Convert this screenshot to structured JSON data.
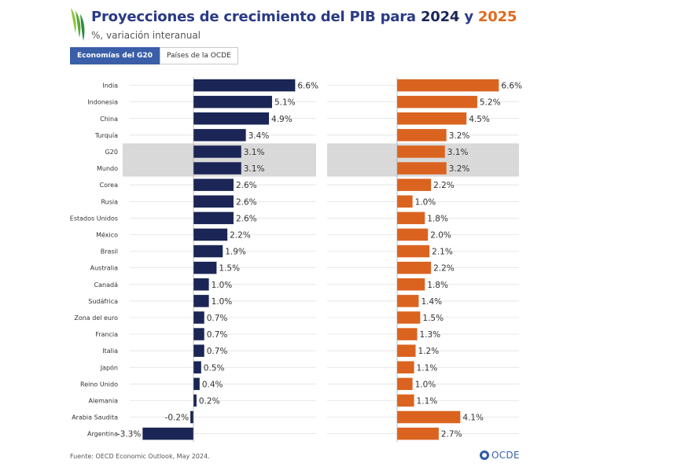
{
  "header": {
    "title_prefix": "Proyecciones de crecimiento del PIB para ",
    "year_a": "2024",
    "title_join": " y ",
    "year_b": "2025",
    "subtitle": "%, variación interanual"
  },
  "tabs": [
    {
      "label": "Economías del G20",
      "active": true
    },
    {
      "label": "Países de la OCDE",
      "active": false
    }
  ],
  "colors": {
    "y2024": "#1b2656",
    "y2025": "#db6320",
    "highlight": "#d9d9d9",
    "grid": "#dedede"
  },
  "chart_data": [
    {
      "type": "bar",
      "orientation": "horizontal",
      "series_name": "2024",
      "unit": "%",
      "categories": [
        "India",
        "Indonesia",
        "China",
        "Turquía",
        "G20",
        "Mundo",
        "Corea",
        "Rusia",
        "Estados Unidos",
        "México",
        "Brasil",
        "Australia",
        "Canadá",
        "Sudáfrica",
        "Zona del euro",
        "Francia",
        "Italia",
        "Japón",
        "Reino Unido",
        "Alemania",
        "Arabia Saudita",
        "Argentina"
      ],
      "values": [
        6.6,
        5.1,
        4.9,
        3.4,
        3.1,
        3.1,
        2.6,
        2.6,
        2.6,
        2.2,
        1.9,
        1.5,
        1.0,
        1.0,
        0.7,
        0.7,
        0.7,
        0.5,
        0.4,
        0.2,
        -0.2,
        -3.3
      ],
      "labels": [
        "6.6%",
        "5.1%",
        "4.9%",
        "3.4%",
        "3.1%",
        "3.1%",
        "2.6%",
        "2.6%",
        "2.6%",
        "2.2%",
        "1.9%",
        "1.5%",
        "1.0%",
        "1.0%",
        "0.7%",
        "0.7%",
        "0.7%",
        "0.5%",
        "0.4%",
        "0.2%",
        "-0.2%",
        "-3.3%"
      ],
      "highlighted": [
        "G20",
        "Mundo"
      ]
    },
    {
      "type": "bar",
      "orientation": "horizontal",
      "series_name": "2025",
      "unit": "%",
      "categories": [
        "India",
        "Indonesia",
        "China",
        "Turquía",
        "G20",
        "Mundo",
        "Corea",
        "Rusia",
        "Estados Unidos",
        "México",
        "Brasil",
        "Australia",
        "Canadá",
        "Sudáfrica",
        "Zona del euro",
        "Francia",
        "Italia",
        "Japón",
        "Reino Unido",
        "Alemania",
        "Arabia Saudita",
        "Argentina"
      ],
      "values": [
        6.6,
        5.2,
        4.5,
        3.2,
        3.1,
        3.2,
        2.2,
        1.0,
        1.8,
        2.0,
        2.1,
        2.2,
        1.8,
        1.4,
        1.5,
        1.3,
        1.2,
        1.1,
        1.0,
        1.1,
        4.1,
        2.7
      ],
      "labels": [
        "6.6%",
        "5.2%",
        "4.5%",
        "3.2%",
        "3.1%",
        "3.2%",
        "2.2%",
        "1.0%",
        "1.8%",
        "2.0%",
        "2.1%",
        "2.2%",
        "1.8%",
        "1.4%",
        "1.5%",
        "1.3%",
        "1.2%",
        "1.1%",
        "1.0%",
        "1.1%",
        "4.1%",
        "2.7%"
      ],
      "highlighted": [
        "G20",
        "Mundo"
      ]
    }
  ],
  "footer": {
    "source": "Fuente: OECD Economic Outlook, May 2024."
  },
  "brand": {
    "name": "OCDE"
  }
}
